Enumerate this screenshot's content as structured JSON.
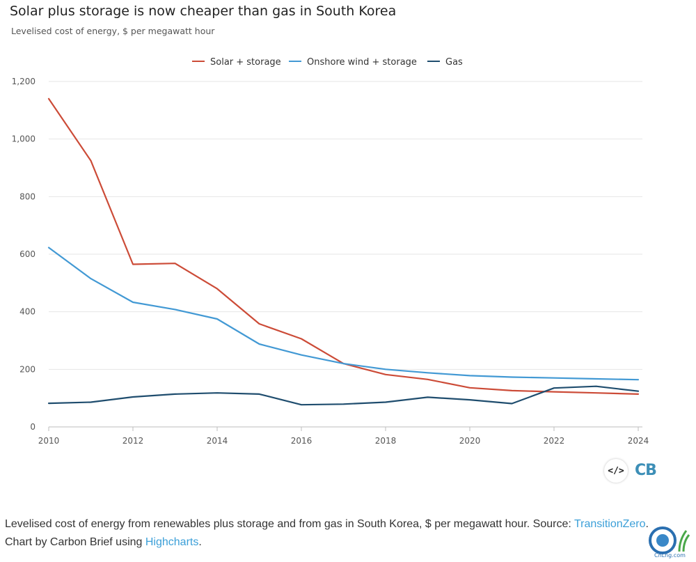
{
  "header": {
    "title": "Solar plus storage is now cheaper than gas in South Korea",
    "subtitle": "Levelised cost of energy, $ per megawatt hour"
  },
  "chart_data": {
    "type": "line",
    "title": "Solar plus storage is now cheaper than gas in South Korea",
    "subtitle": "Levelised cost of energy, $ per megawatt hour",
    "xlabel": "",
    "ylabel": "",
    "x": [
      2010,
      2011,
      2012,
      2013,
      2014,
      2015,
      2016,
      2017,
      2018,
      2019,
      2020,
      2021,
      2022,
      2023,
      2024
    ],
    "xlim": [
      2010,
      2024
    ],
    "ylim": [
      0,
      1200
    ],
    "x_ticks": [
      "2010",
      "2012",
      "2014",
      "2016",
      "2018",
      "2020",
      "2022",
      "2024"
    ],
    "y_ticks": [
      "0",
      "200",
      "400",
      "600",
      "800",
      "1,000",
      "1,200"
    ],
    "grid": "horizontal",
    "legend_position": "top-center",
    "series": [
      {
        "name": "Solar + storage",
        "color": "#cc4b37",
        "values": [
          1140,
          925,
          565,
          568,
          480,
          358,
          306,
          220,
          182,
          165,
          136,
          126,
          122,
          118,
          114
        ]
      },
      {
        "name": "Onshore wind + storage",
        "color": "#4299d4",
        "values": [
          623,
          515,
          433,
          408,
          375,
          288,
          250,
          220,
          200,
          188,
          178,
          173,
          170,
          167,
          164
        ]
      },
      {
        "name": "Gas",
        "color": "#1f4d6e",
        "values": [
          82,
          86,
          104,
          114,
          118,
          114,
          77,
          79,
          86,
          103,
          94,
          81,
          135,
          141,
          124
        ]
      }
    ]
  },
  "caption": {
    "text": "Levelised cost of energy from renewables plus storage and from gas in South Korea, $ per megawatt hour. Source: ",
    "source_link": "TransitionZero",
    "period": ".",
    "line2_text": "Chart by Carbon Brief using ",
    "highcharts_link": "Highcharts",
    "line2_end": "."
  },
  "embed_button": {
    "label": "</>"
  },
  "brand": {
    "logo_text": "CB"
  },
  "watermark": {
    "text": "CnLng.com"
  }
}
